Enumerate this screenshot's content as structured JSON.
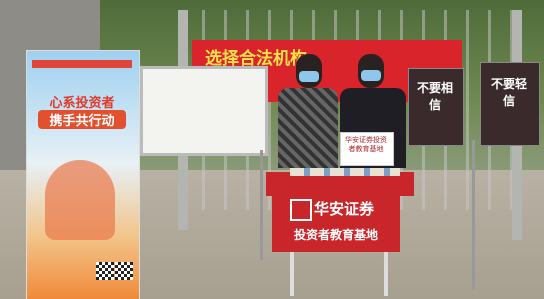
{
  "banner": {
    "text": "选择合法机构"
  },
  "poster": {
    "line1": "心系投资者",
    "line2": "携手共行动"
  },
  "right_signs": [
    "不要相信",
    "不要轻信"
  ],
  "held_sign": {
    "text": "华安证券投资者教育基地"
  },
  "table_sign": {
    "brand": "华安证券",
    "subtitle": "投资者教育基地"
  }
}
